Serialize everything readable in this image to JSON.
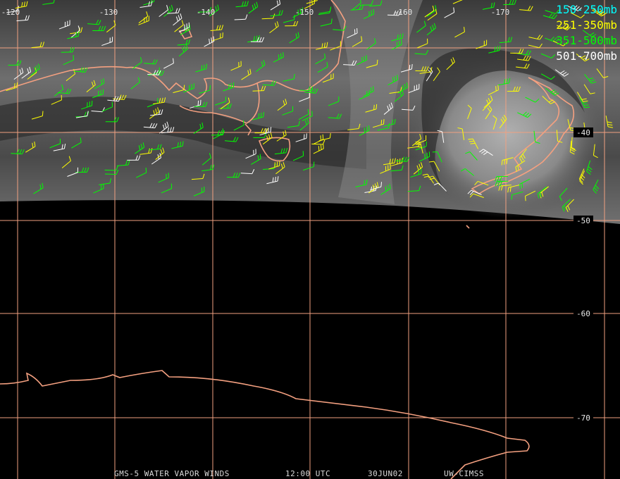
{
  "map": {
    "longitude_labels": [
      "-120",
      "-130",
      "-140",
      "-150",
      "-160",
      "-170"
    ],
    "latitude_labels": [
      "-40",
      "-50",
      "-60",
      "-70"
    ],
    "legend": [
      {
        "label": "150-250mb",
        "color": "#00ffff"
      },
      {
        "label": "251-350mb",
        "color": "#ffff00"
      },
      {
        "label": "351-500mb",
        "color": "#00ff00"
      },
      {
        "label": "501-700mb",
        "color": "#ffffff"
      }
    ],
    "footer": [
      "GMS-5 WATER VAPOR WINDS",
      "12:00 UTC",
      "30JUN02",
      "UW-CIMSS"
    ]
  }
}
